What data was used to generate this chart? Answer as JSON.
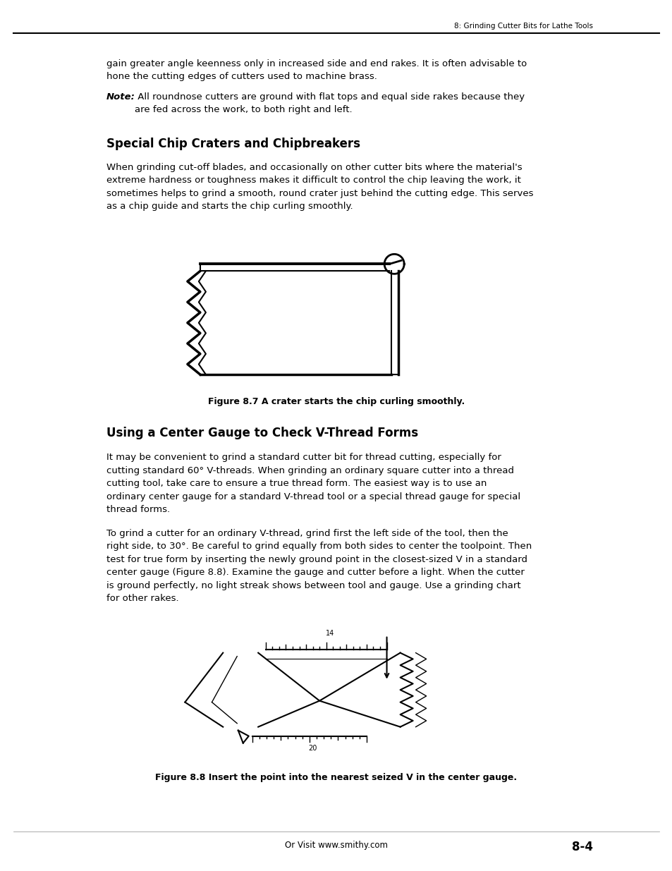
{
  "bg_color": "#ffffff",
  "header_text": "8: Grinding Cutter Bits for Lathe Tools",
  "para1": "gain greater angle keenness only in increased side and end rakes. It is often advisable to\nhone the cutting edges of cutters used to machine brass.",
  "para2_bold": "Note:",
  "para2_rest": " All roundnose cutters are ground with flat tops and equal side rakes because they\nare fed across the work, to both right and left.",
  "section1_title": "Special Chip Craters and Chipbreakers",
  "section1_body": "When grinding cut-off blades, and occasionally on other cutter bits where the material's\nextreme hardness or toughness makes it difficult to control the chip leaving the work, it\nsometimes helps to grind a smooth, round crater just behind the cutting edge. This serves\nas a chip guide and starts the chip curling smoothly.",
  "fig1_caption": "Figure 8.7 A crater starts the chip curling smoothly.",
  "section2_title": "Using a Center Gauge to Check V-Thread Forms",
  "section2_body1": "It may be convenient to grind a standard cutter bit for thread cutting, especially for\ncutting standard 60° V-threads. When grinding an ordinary square cutter into a thread\ncutting tool, take care to ensure a true thread form. The easiest way is to use an\nordinary center gauge for a standard V-thread tool or a special thread gauge for special\nthread forms.",
  "section2_body2": "To grind a cutter for an ordinary V-thread, grind first the left side of the tool, then the\nright side, to 30°. Be careful to grind equally from both sides to center the toolpoint. Then\ntest for true form by inserting the newly ground point in the closest-sized V in a standard\ncenter gauge (Figure 8.8). Examine the gauge and cutter before a light. When the cutter\nis ground perfectly, no light streak shows between tool and gauge. Use a grinding chart\nfor other rakes.",
  "fig2_caption": "Figure 8.8 Insert the point into the nearest seized V in the center gauge.",
  "footer_center": "Or Visit www.smithy.com",
  "footer_right": "8-4",
  "ml": 0.158,
  "mr": 0.882,
  "text_color": "#000000"
}
